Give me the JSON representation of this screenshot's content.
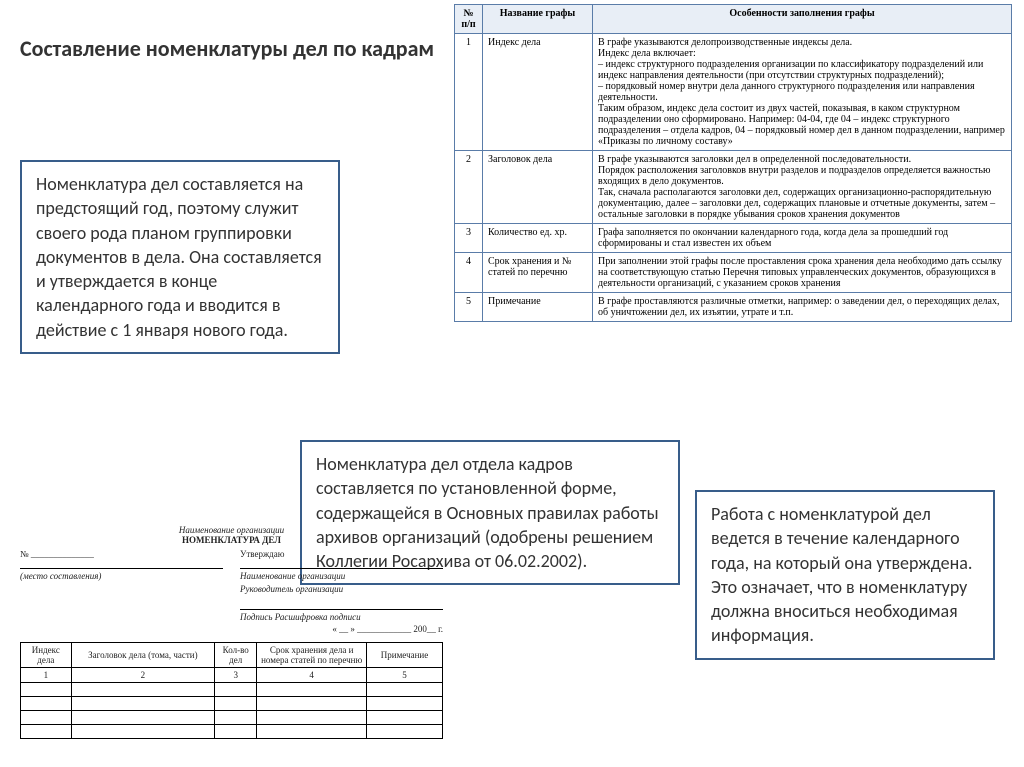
{
  "title": "Составление номенклатуры дел по кадрам",
  "boxes": {
    "b1": "Номенклатура дел составляется на предстоящий год, поэтому служит своего рода планом группировки документов в дела. Она составляется и утверждается в конце календарного года и вводится в действие с 1 января нового года.",
    "b2": "Номенклатура дел отдела кадров составляется по установленной форме, содержащейся в Основных правилах работы архивов организаций (одобрены решением Коллегии Росархива от 06.02.2002).",
    "b3": "Работа с номенклатурой дел ведется в течение календарного года, на который она утверждена. Это означает, что в номенклатуру должна вноситься необходимая информация."
  },
  "main_table": {
    "headers": [
      "№ п/п",
      "Название графы",
      "Особенности заполнения графы"
    ],
    "rows": [
      {
        "n": "1",
        "name": "Индекс дела",
        "desc": "В графе указываются делопроизводственные индексы дела.\nИндекс дела включает:\n– индекс структурного подразделения организации по классификатору подразделений или индекс направления деятельности (при отсутствии структурных подразделений);\n– порядковый номер внутри дела данного структурного подразделения или направления деятельности.\nТаким образом, индекс дела состоит из двух частей, показывая, в каком структурном подразделении оно сформировано. Например: 04-04, где 04 – индекс структурного подразделения – отдела кадров, 04 – порядковый номер дел в данном подразделении, например «Приказы по личному составу»"
      },
      {
        "n": "2",
        "name": "Заголовок дела",
        "desc": "В графе указываются заголовки дел в определенной последовательности.\nПорядок расположения заголовков внутри разделов и подразделов определяется важностью входящих в дело документов.\nТак, сначала располагаются заголовки дел, содержащих организационно-распорядительную документацию, далее – заголовки дел, содержащих плановые и отчетные документы, затем – остальные заголовки в порядке убывания сроков хранения документов"
      },
      {
        "n": "3",
        "name": "Количество ед. хр.",
        "desc": "Графа заполняется по окончании календарного года, когда дела за прошедший год сформированы и стал известен их объем"
      },
      {
        "n": "4",
        "name": "Срок хранения и № статей по перечню",
        "desc": "При заполнении этой графы после проставления срока хранения дела необходимо дать ссылку на соответствующую статью Перечня типовых управленческих документов, образующихся в деятельности организаций, с указанием сроков хранения"
      },
      {
        "n": "5",
        "name": "Примечание",
        "desc": "В графе проставляются различные отметки, например: о заведении дел, о переходящих делах, об уничтожении дел, их изъятии, утрате и т.п."
      }
    ]
  },
  "form": {
    "org": "Наименование организации",
    "title": "НОМЕНКЛАТУРА ДЕЛ",
    "num": "№ ______________",
    "place": "(место составления)",
    "approve": "Утверждаю",
    "org2": "Наименование организации",
    "head": "Руководитель организации",
    "sign": "Подпись  Расшифровка подписи",
    "date": "« __ » ____________ 200__ г.",
    "cols": [
      "Индекс дела",
      "Заголовок дела (тома, части)",
      "Кол-во дел",
      "Срок хранения дела и номера статей по перечню",
      "Примечание"
    ],
    "nums": [
      "1",
      "2",
      "3",
      "4",
      "5"
    ]
  }
}
